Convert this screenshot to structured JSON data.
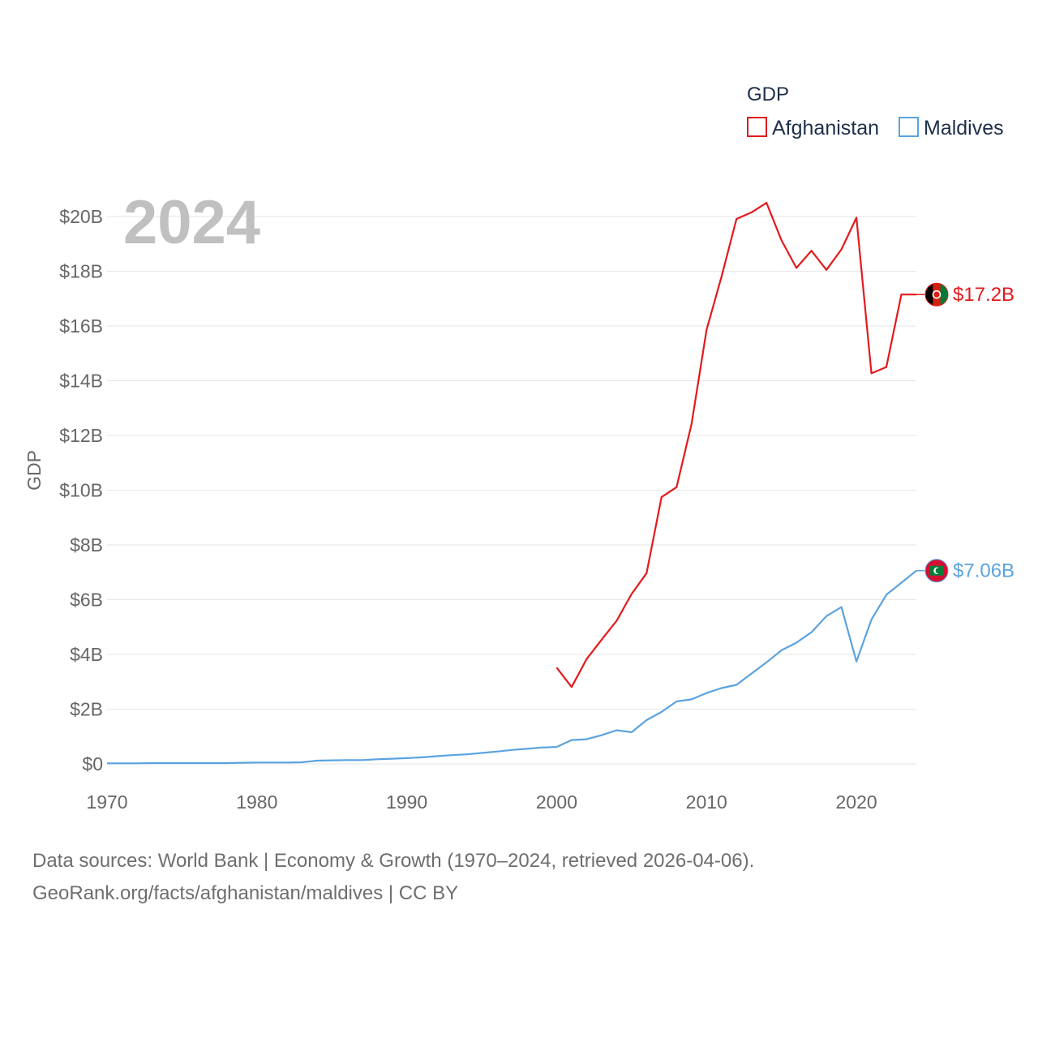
{
  "chart_data": {
    "type": "line",
    "title": "GDP",
    "ylabel": "GDP",
    "xlabel": "",
    "year_label": "2024",
    "xlim": [
      1970,
      2024
    ],
    "ylim": [
      0,
      20500000000
    ],
    "x_ticks": [
      1970,
      1980,
      1990,
      2000,
      2010,
      2020
    ],
    "x_tick_labels": [
      "1970",
      "1980",
      "1990",
      "2000",
      "2010",
      "2020"
    ],
    "y_ticks": [
      0,
      2000000000,
      4000000000,
      6000000000,
      8000000000,
      10000000000,
      12000000000,
      14000000000,
      16000000000,
      18000000000,
      20000000000
    ],
    "y_tick_labels": [
      "$0",
      "$2B",
      "$4B",
      "$6B",
      "$8B",
      "$10B",
      "$12B",
      "$14B",
      "$16B",
      "$18B",
      "$20B"
    ],
    "grid": true,
    "legend_position": "top-right",
    "series": [
      {
        "name": "Afghanistan",
        "color": "#e31a1c",
        "end_label": "$17.2B",
        "flag_icon": "afghanistan-flag-icon",
        "x": [
          2000,
          2001,
          2002,
          2003,
          2004,
          2005,
          2006,
          2007,
          2008,
          2009,
          2010,
          2011,
          2012,
          2013,
          2014,
          2015,
          2016,
          2017,
          2018,
          2019,
          2020,
          2021,
          2022,
          2023,
          2024
        ],
        "values": [
          3520000000.0,
          2810000000.0,
          3830000000.0,
          4540000000.0,
          5230000000.0,
          6210000000.0,
          6970000000.0,
          9750000000.0,
          10110000000.0,
          12420000000.0,
          15860000000.0,
          17800000000.0,
          19910000000.0,
          20150000000.0,
          20500000000.0,
          19130000000.0,
          18120000000.0,
          18750000000.0,
          18050000000.0,
          18800000000.0,
          19960000000.0,
          14270000000.0,
          14500000000.0,
          17150000000.0,
          17150000000.0
        ]
      },
      {
        "name": "Maldives",
        "color": "#5ba3e0",
        "end_label": "$7.06B",
        "flag_icon": "maldives-flag-icon",
        "x": [
          1970,
          1971,
          1972,
          1973,
          1974,
          1975,
          1976,
          1977,
          1978,
          1979,
          1980,
          1981,
          1982,
          1983,
          1984,
          1985,
          1986,
          1987,
          1988,
          1989,
          1990,
          1991,
          1992,
          1993,
          1994,
          1995,
          1996,
          1997,
          1998,
          1999,
          2000,
          2001,
          2002,
          2003,
          2004,
          2005,
          2006,
          2007,
          2008,
          2009,
          2010,
          2011,
          2012,
          2013,
          2014,
          2015,
          2016,
          2017,
          2018,
          2019,
          2020,
          2021,
          2022,
          2023,
          2024
        ],
        "values": [
          20000000.0,
          20000000.0,
          20000000.0,
          30000000.0,
          30000000.0,
          30000000.0,
          30000000.0,
          30000000.0,
          30000000.0,
          40000000.0,
          50000000.0,
          50000000.0,
          50000000.0,
          60000000.0,
          120000000.0,
          130000000.0,
          140000000.0,
          140000000.0,
          170000000.0,
          190000000.0,
          210000000.0,
          240000000.0,
          280000000.0,
          320000000.0,
          350000000.0,
          400000000.0,
          450000000.0,
          510000000.0,
          550000000.0,
          600000000.0,
          620000000.0,
          870000000.0,
          900000000.0,
          1050000000.0,
          1230000000.0,
          1160000000.0,
          1600000000.0,
          1900000000.0,
          2280000000.0,
          2360000000.0,
          2590000000.0,
          2770000000.0,
          2890000000.0,
          3300000000.0,
          3710000000.0,
          4150000000.0,
          4430000000.0,
          4810000000.0,
          5400000000.0,
          5730000000.0,
          3740000000.0,
          5270000000.0,
          6180000000.0,
          6620000000.0,
          7060000000.0
        ]
      }
    ]
  },
  "source": {
    "line1": "Data sources: World Bank | Economy & Growth (1970–2024, retrieved 2026-04-06).",
    "line2": "GeoRank.org/facts/afghanistan/maldives | CC BY"
  }
}
